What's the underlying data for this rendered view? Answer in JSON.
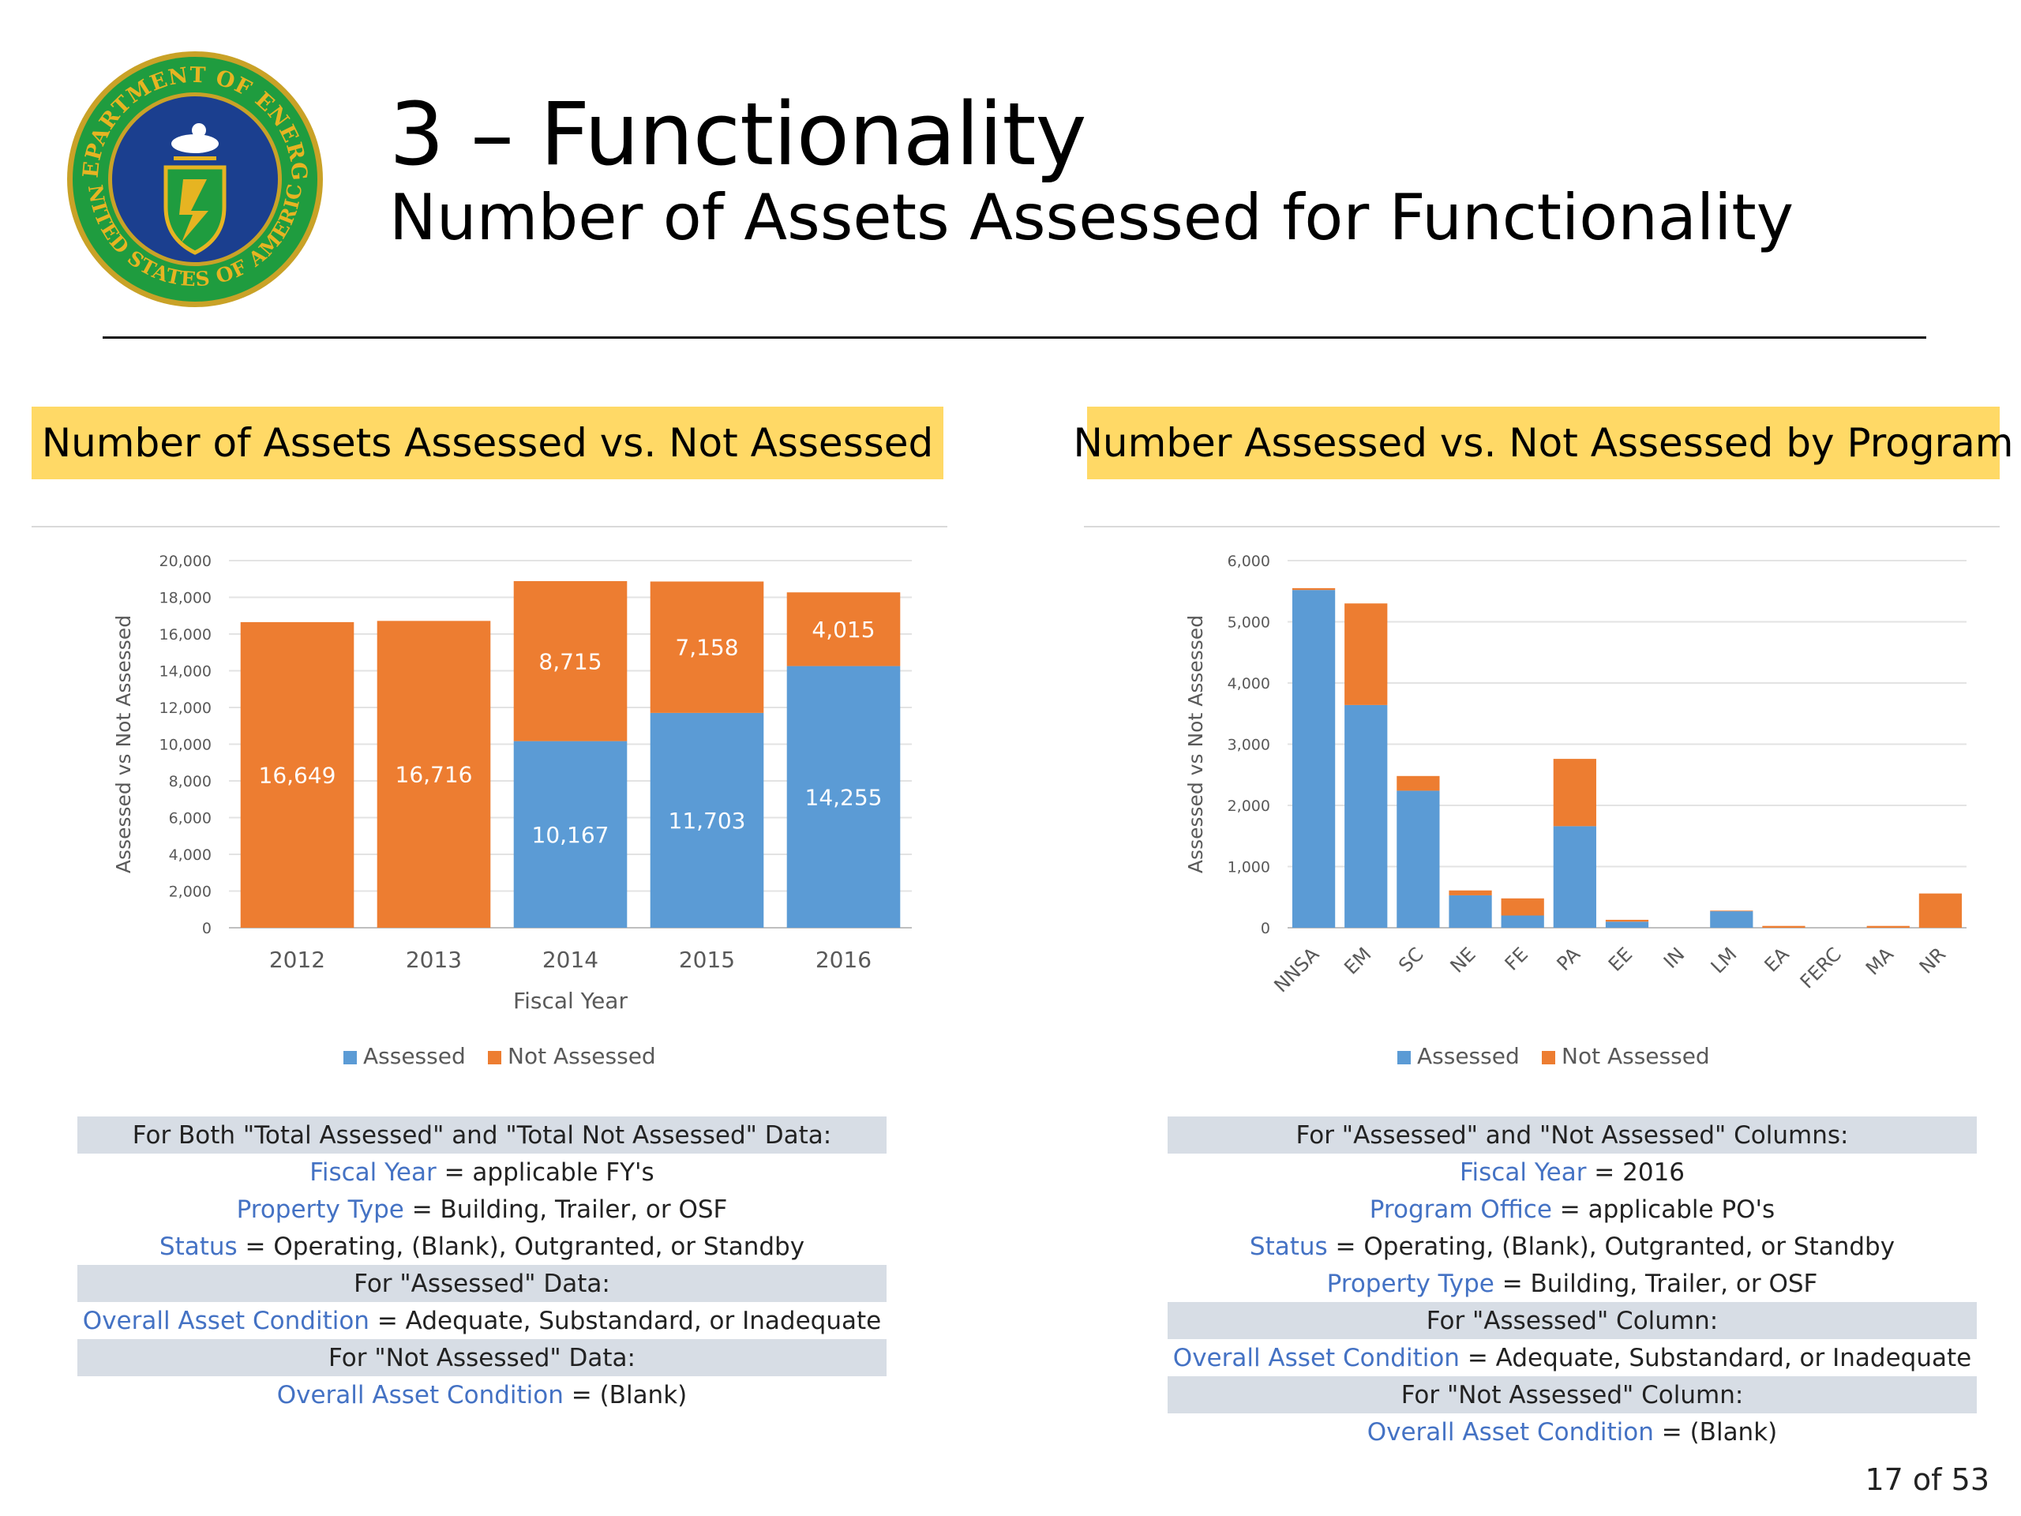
{
  "header": {
    "title": "3 – Functionality",
    "subtitle": "Number of Assets Assessed for Functionality",
    "seal": {
      "ring_text_top": "DEPARTMENT OF ENERGY",
      "ring_text_bottom": "UNITED STATES OF AMERICA",
      "colors": {
        "ring": "#1f9c3f",
        "field": "#1b3f8f",
        "gold": "#e6b422",
        "border": "#c9a227"
      }
    }
  },
  "colors": {
    "assessed": "#5b9bd5",
    "not_assessed": "#ed7d31",
    "panel_title_bg": "#ffd966",
    "criteria_header_bg": "#d7dde5",
    "field_name": "#4472c4"
  },
  "left_panel": {
    "title": "Number of Assets Assessed vs. Not Assessed",
    "criteria": [
      {
        "type": "header",
        "text": "For Both \"Total Assessed\" and \"Total Not Assessed\" Data:"
      },
      {
        "type": "row",
        "field": "Fiscal Year",
        "value": " = applicable FY's"
      },
      {
        "type": "row",
        "field": "Property Type",
        "value": " = Building, Trailer, or OSF"
      },
      {
        "type": "row",
        "field": "Status",
        "value": " = Operating, (Blank), Outgranted, or Standby"
      },
      {
        "type": "header",
        "text": "For \"Assessed\" Data:"
      },
      {
        "type": "row",
        "field": "Overall Asset Condition",
        "value": " = Adequate, Substandard, or Inadequate"
      },
      {
        "type": "header",
        "text": "For \"Not Assessed\" Data:"
      },
      {
        "type": "row",
        "field": "Overall Asset Condition",
        "value": " = (Blank)"
      }
    ]
  },
  "right_panel": {
    "title": "Number Assessed vs. Not Assessed by Program",
    "criteria": [
      {
        "type": "header",
        "text": "For \"Assessed\" and \"Not Assessed\" Columns:"
      },
      {
        "type": "row",
        "field": "Fiscal Year",
        "value": " = 2016"
      },
      {
        "type": "row",
        "field": "Program Office",
        "value": " = applicable PO's"
      },
      {
        "type": "row",
        "field": "Status",
        "value": " = Operating, (Blank), Outgranted, or Standby"
      },
      {
        "type": "row",
        "field": "Property Type",
        "value": " = Building, Trailer, or OSF"
      },
      {
        "type": "header",
        "text": "For \"Assessed\" Column:"
      },
      {
        "type": "row",
        "field": "Overall Asset Condition",
        "value": " = Adequate, Substandard, or Inadequate"
      },
      {
        "type": "header",
        "text": "For \"Not Assessed\" Column:"
      },
      {
        "type": "row",
        "field": "Overall Asset Condition",
        "value": " = (Blank)"
      }
    ]
  },
  "page_number": "17 of 53",
  "chart_data": [
    {
      "type": "bar",
      "stacked": true,
      "categories": [
        "2012",
        "2013",
        "2014",
        "2015",
        "2016"
      ],
      "series": [
        {
          "name": "Assessed",
          "values": [
            0,
            0,
            10167,
            11703,
            14255
          ],
          "labels": [
            "",
            "",
            "10,167",
            "11,703",
            "14,255"
          ]
        },
        {
          "name": "Not Assessed",
          "values": [
            16649,
            16716,
            8715,
            7158,
            4015
          ],
          "labels": [
            "16,649",
            "16,716",
            "8,715",
            "7,158",
            "4,015"
          ]
        }
      ],
      "xlabel": "Fiscal Year",
      "ylabel": "Assessed vs Not Assessed",
      "ylim": [
        0,
        20000
      ],
      "yticks": [
        "0",
        "2,000",
        "4,000",
        "6,000",
        "8,000",
        "10,000",
        "12,000",
        "14,000",
        "16,000",
        "18,000",
        "20,000"
      ],
      "grid": true,
      "legend": "bottom"
    },
    {
      "type": "bar",
      "stacked": true,
      "categories": [
        "NNSA",
        "EM",
        "SC",
        "NE",
        "FE",
        "PA",
        "EE",
        "IN",
        "LM",
        "EA",
        "FERC",
        "MA",
        "NR"
      ],
      "series": [
        {
          "name": "Assessed",
          "values": [
            5520,
            3640,
            2240,
            530,
            200,
            1660,
            100,
            0,
            270,
            0,
            0,
            0,
            0
          ]
        },
        {
          "name": "Not Assessed",
          "values": [
            30,
            1660,
            240,
            80,
            280,
            1100,
            30,
            0,
            10,
            30,
            0,
            30,
            560
          ]
        }
      ],
      "xlabel": "",
      "ylabel": "Assessed vs Not Assessed",
      "ylim": [
        0,
        6000
      ],
      "yticks": [
        "0",
        "1,000",
        "2,000",
        "3,000",
        "4,000",
        "5,000",
        "6,000"
      ],
      "grid": true,
      "legend": "bottom"
    }
  ]
}
